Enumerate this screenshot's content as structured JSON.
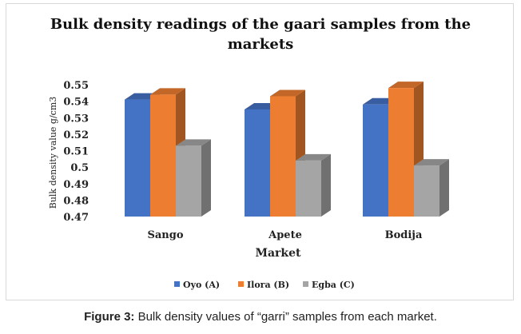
{
  "chart_data": {
    "type": "bar",
    "title": "Bulk density readings of the gaari samples from the markets",
    "title_lines": [
      "Bulk density readings of the gaari samples from the",
      "markets"
    ],
    "xlabel": "Market",
    "ylabel": "Bulk density value g/cm3",
    "categories": [
      "Sango",
      "Apete",
      "Bodija"
    ],
    "series": [
      {
        "name": "Oyo (A)",
        "values": [
          0.541,
          0.535,
          0.538
        ],
        "color": "#4472c4"
      },
      {
        "name": "Ilora (B)",
        "values": [
          0.544,
          0.543,
          0.548
        ],
        "color": "#ed7d31"
      },
      {
        "name": "Egba (C)",
        "values": [
          0.513,
          0.504,
          0.501
        ],
        "color": "#a5a5a5"
      }
    ],
    "ylim": [
      0.47,
      0.55
    ],
    "yticks": [
      "0.55",
      "0.54",
      "0.53",
      "0.52",
      "0.51",
      "0.5",
      "0.49",
      "0.48",
      "0.47"
    ],
    "grid": false,
    "legend_position": "bottom",
    "style": "3d-clustered-column"
  },
  "caption": {
    "label": "Figure 3:",
    "text": " Bulk density values of “garri” samples from each market."
  }
}
